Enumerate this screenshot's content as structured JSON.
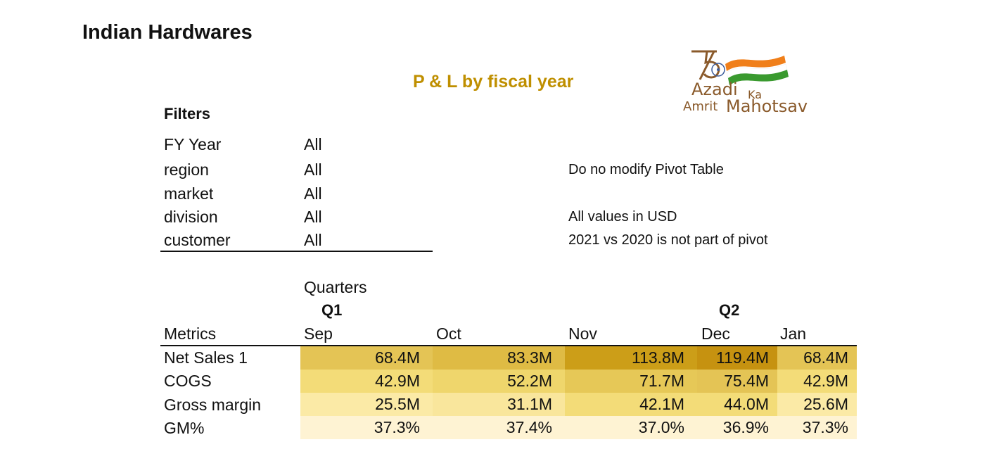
{
  "title": "Indian Hardwares",
  "subtitle": "P & L by fiscal year",
  "logo": {
    "line1": "Azadi",
    "line1_small": "Ka",
    "line2_small": "Amrit",
    "line2": "Mahotsav",
    "number": "75",
    "colors": {
      "saffron": "#f07f1a",
      "green": "#3a9a2f",
      "text": "#8a5a2b"
    }
  },
  "filters": {
    "heading": "Filters",
    "items": [
      {
        "name": "FY Year",
        "value": "All"
      },
      {
        "name": "region",
        "value": "All"
      },
      {
        "name": "market",
        "value": "All"
      },
      {
        "name": "division",
        "value": "All"
      },
      {
        "name": "customer",
        "value": "All"
      }
    ]
  },
  "notes": {
    "pivot_warning": "Do no modify Pivot Table",
    "currency": "All values in USD",
    "comparison": "2021 vs 2020 is not part of pivot"
  },
  "pivot": {
    "columns_label": "Quarters",
    "quarters": [
      "Q1",
      "Q2"
    ],
    "rows_label": "Metrics",
    "months": [
      "Sep",
      "Oct",
      "Nov",
      "Dec",
      "Jan"
    ],
    "rows": [
      {
        "label": "Net Sales 1",
        "values": [
          "68.4M",
          "83.3M",
          "113.8M",
          "119.4M",
          "68.4M"
        ],
        "colors": [
          "#e4c455",
          "#dfbb44",
          "#cc9e18",
          "#c69210",
          "#e4c455"
        ]
      },
      {
        "label": "COGS",
        "values": [
          "42.9M",
          "52.2M",
          "71.7M",
          "75.4M",
          "42.9M"
        ],
        "colors": [
          "#f3dc78",
          "#efd66c",
          "#e6c857",
          "#e4c455",
          "#f3dc78"
        ]
      },
      {
        "label": "Gross margin",
        "values": [
          "25.5M",
          "31.1M",
          "42.1M",
          "44.0M",
          "25.6M"
        ],
        "colors": [
          "#fbeaa6",
          "#f9e69c",
          "#f3dc78",
          "#f3dc78",
          "#fbeaa6"
        ]
      },
      {
        "label": "GM%",
        "values": [
          "37.3%",
          "37.4%",
          "37.0%",
          "36.9%",
          "37.3%"
        ],
        "colors": [
          "#fef3d3",
          "#fef3d3",
          "#fef3d3",
          "#fef3d3",
          "#fef3d3"
        ]
      }
    ]
  }
}
